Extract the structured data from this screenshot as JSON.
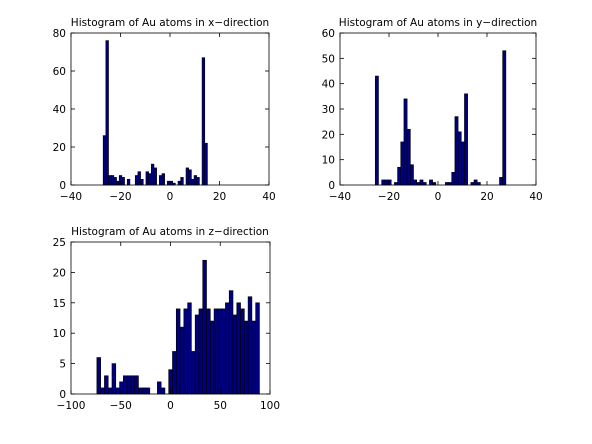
{
  "figure": {
    "background": "#ffffff",
    "bar_fill": "#00007f",
    "bar_edge": "#000000"
  },
  "chart_data": [
    {
      "type": "bar",
      "title": "Histogram of Au atoms in x−direction",
      "xlabel": "",
      "ylabel": "",
      "xlim": [
        -40,
        40
      ],
      "ylim": [
        0,
        80
      ],
      "xticks": [
        -40,
        -20,
        0,
        20,
        40
      ],
      "yticks": [
        0,
        20,
        40,
        60,
        80
      ],
      "tick_labels_x": [
        "−40",
        "−20",
        "0",
        "20",
        "40"
      ],
      "tick_labels_y": [
        "0",
        "20",
        "40",
        "60",
        "80"
      ],
      "grid": false,
      "bin_start": -27.0,
      "bin_width": 1.08,
      "values": [
        26,
        76,
        5,
        5,
        4,
        2,
        5,
        4,
        0,
        3,
        0,
        0,
        5,
        7,
        3,
        0,
        7,
        6,
        11,
        9,
        0,
        5,
        6,
        0,
        2,
        2,
        1,
        0,
        2,
        4,
        0,
        9,
        8,
        3,
        5,
        4,
        0,
        67,
        22,
        0
      ]
    },
    {
      "type": "bar",
      "title": "Histogram of Au atoms in y−direction",
      "xlabel": "",
      "ylabel": "",
      "xlim": [
        -40,
        40
      ],
      "ylim": [
        0,
        60
      ],
      "xticks": [
        -40,
        -20,
        0,
        20,
        40
      ],
      "yticks": [
        0,
        10,
        20,
        30,
        40,
        50,
        60
      ],
      "tick_labels_x": [
        "−40",
        "−20",
        "0",
        "20",
        "40"
      ],
      "tick_labels_y": [
        "0",
        "10",
        "20",
        "30",
        "40",
        "50",
        "60"
      ],
      "grid": false,
      "bin_start": -25.6,
      "bin_width": 1.3,
      "values": [
        43,
        0,
        2,
        2,
        2,
        0,
        1,
        7,
        17,
        34,
        22,
        8,
        2,
        1,
        2,
        1,
        0,
        2,
        1,
        0,
        0,
        0,
        1,
        1,
        5,
        27,
        21,
        17,
        36,
        0,
        1,
        2,
        1,
        0,
        0,
        0,
        0,
        0,
        0,
        3,
        53,
        0
      ]
    },
    {
      "type": "bar",
      "title": "Histogram of Au atoms in z−direction",
      "xlabel": "",
      "ylabel": "",
      "xlim": [
        -100,
        100
      ],
      "ylim": [
        0,
        25
      ],
      "xticks": [
        -100,
        -50,
        0,
        50,
        100
      ],
      "yticks": [
        0,
        5,
        10,
        15,
        20,
        25
      ],
      "tick_labels_x": [
        "−100",
        "−50",
        "0",
        "50",
        "100"
      ],
      "tick_labels_y": [
        "0",
        "5",
        "10",
        "15",
        "20",
        "25"
      ],
      "grid": false,
      "bin_start": -74.0,
      "bin_width": 3.8,
      "values": [
        6,
        1,
        3,
        1,
        5,
        1,
        2,
        3,
        3,
        3,
        3,
        1,
        1,
        1,
        0,
        0,
        2,
        1,
        0,
        4,
        7,
        14,
        11,
        14,
        15,
        7,
        13,
        14,
        22,
        14,
        12,
        14,
        14,
        14,
        15,
        17,
        13,
        15,
        14,
        12,
        16,
        12,
        15
      ]
    }
  ]
}
